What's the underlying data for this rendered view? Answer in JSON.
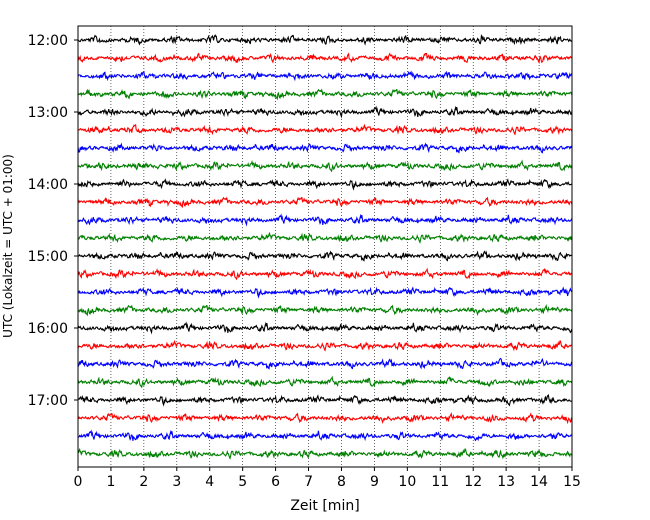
{
  "chart_data": {
    "type": "line",
    "title": "",
    "xlabel": "Zeit  [min]",
    "ylabel": "UTC (Lokalzeit = UTC + 01:00)",
    "xlim": [
      0,
      15
    ],
    "x_ticks": [
      "0",
      "1",
      "2",
      "3",
      "4",
      "5",
      "6",
      "7",
      "8",
      "9",
      "10",
      "11",
      "12",
      "13",
      "14",
      "15"
    ],
    "y_ticks": [
      "12:00",
      "13:00",
      "14:00",
      "15:00",
      "16:00",
      "17:00"
    ],
    "grid": "vertical dotted",
    "trace_colors": [
      "#000000",
      "#ff0000",
      "#0000ff",
      "#008000"
    ],
    "traces_per_hour": 4,
    "start_time": "12:00",
    "trace_count": 24
  }
}
